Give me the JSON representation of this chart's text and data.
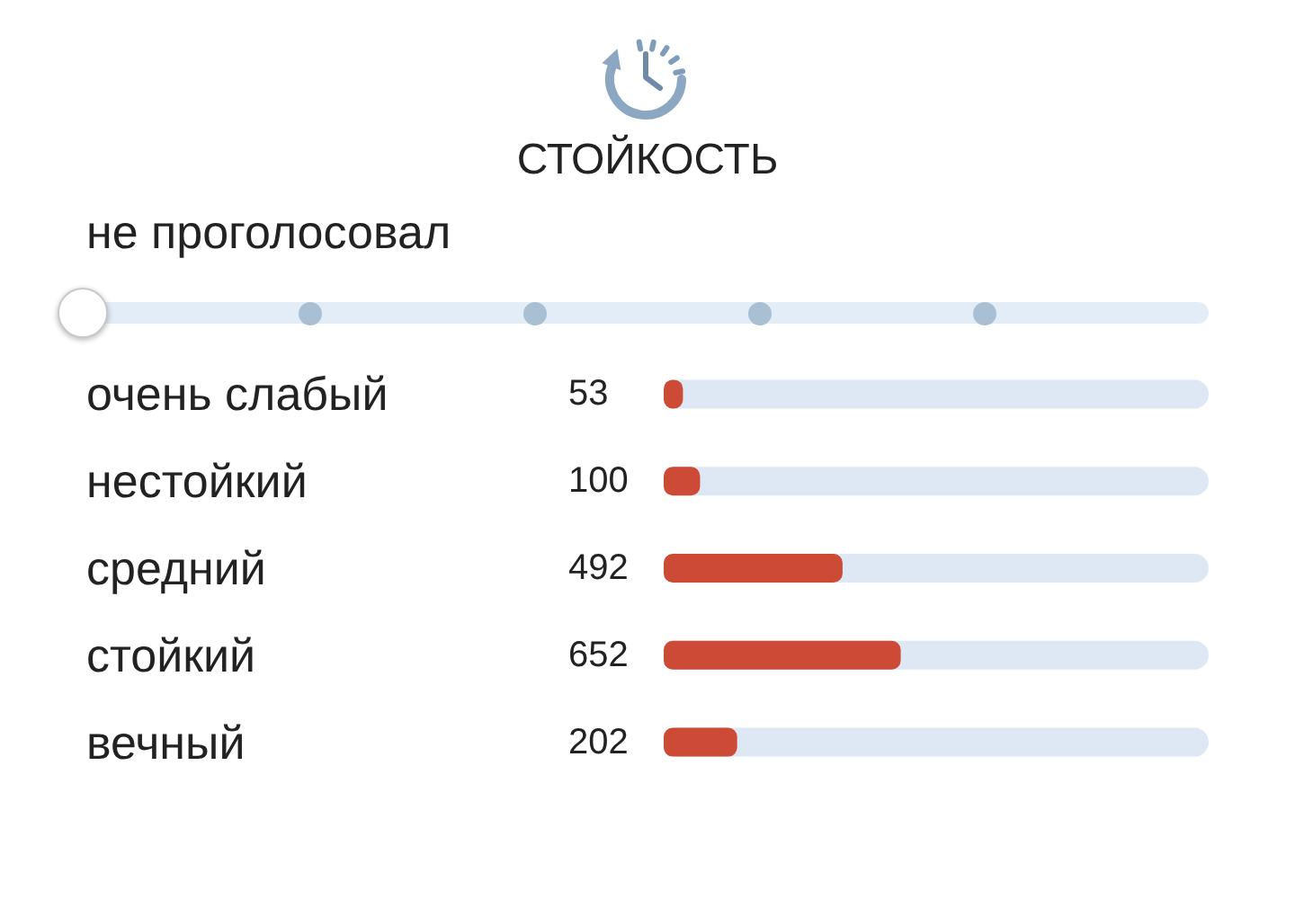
{
  "chart_data": {
    "type": "bar",
    "orientation": "horizontal",
    "title": "СТОЙКОСТЬ",
    "annotations": [
      "не проголосовал"
    ],
    "categories": [
      "очень слабый",
      "нестойкий",
      "средний",
      "стойкий",
      "вечный"
    ],
    "values": [
      53,
      100,
      492,
      652,
      202
    ],
    "color": "#cc4a36",
    "xlim": [
      0,
      1499
    ],
    "tick_labels": "y",
    "data_labels": true
  }
}
